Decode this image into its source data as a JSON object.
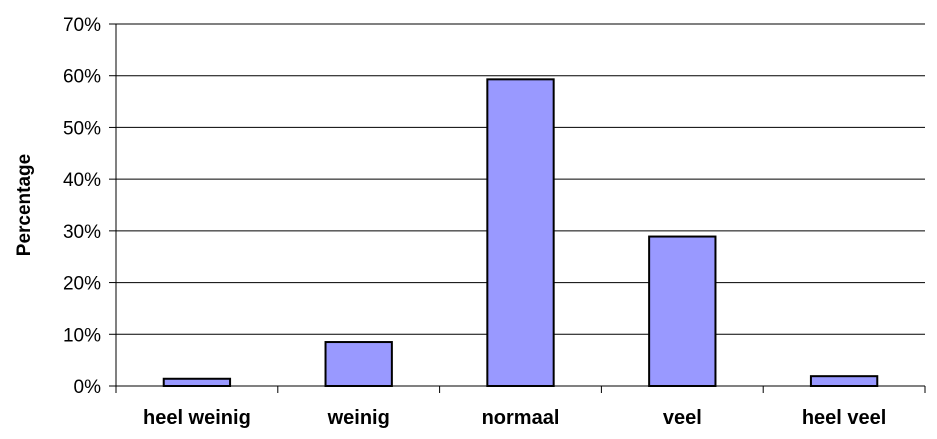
{
  "chart_data": {
    "type": "bar",
    "categories": [
      "heel weinig",
      "weinig",
      "normaal",
      "veel",
      "heel veel"
    ],
    "values": [
      1.4,
      8.5,
      59.3,
      28.9,
      1.9
    ],
    "ylabel": "Percentage",
    "xlabel": "",
    "ylim": [
      0,
      70
    ],
    "yticks": [
      "0%",
      "10%",
      "20%",
      "30%",
      "40%",
      "50%",
      "60%",
      "70%"
    ],
    "ytick_values": [
      0,
      10,
      20,
      30,
      40,
      50,
      60,
      70
    ],
    "grid": true,
    "legend": "none",
    "colors": {
      "bar_fill": "#9999ff",
      "bar_stroke": "#000000",
      "grid": "#000000",
      "axis": "#000000"
    }
  }
}
